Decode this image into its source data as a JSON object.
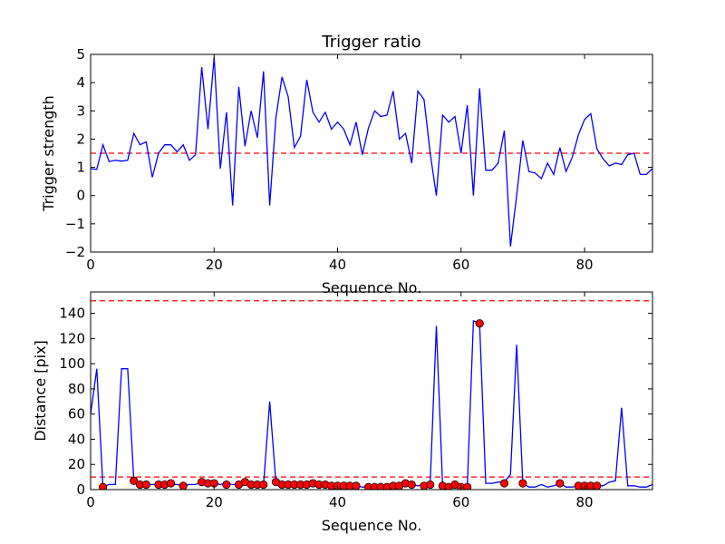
{
  "colors": {
    "line": "#0000ff",
    "marker": "#ff0000",
    "ref_line": "#ff0000",
    "background": "#ffffff"
  },
  "chart_data": [
    {
      "type": "line",
      "title": "Trigger ratio",
      "xlabel": "Sequence No.",
      "ylabel": "Trigger strength",
      "xlim": [
        0,
        91
      ],
      "ylim": [
        -2,
        5
      ],
      "xticks": [
        0,
        20,
        40,
        60,
        80
      ],
      "yticks": [
        -2,
        -1,
        0,
        1,
        2,
        3,
        4,
        5
      ],
      "grid": false,
      "reference_lines": [
        {
          "y": 1.5,
          "style": "dashed",
          "color": "#ff0000"
        }
      ],
      "series": [
        {
          "color": "#0000ff",
          "x": [
            0,
            1,
            2,
            3,
            4,
            5,
            6,
            7,
            8,
            9,
            10,
            11,
            12,
            13,
            14,
            15,
            16,
            17,
            18,
            19,
            20,
            21,
            22,
            23,
            24,
            25,
            26,
            27,
            28,
            29,
            30,
            31,
            32,
            33,
            34,
            35,
            36,
            37,
            38,
            39,
            40,
            41,
            42,
            43,
            44,
            45,
            46,
            47,
            48,
            49,
            50,
            51,
            52,
            53,
            54,
            55,
            56,
            57,
            58,
            59,
            60,
            61,
            62,
            63,
            64,
            65,
            66,
            67,
            68,
            69,
            70,
            71,
            72,
            73,
            74,
            75,
            76,
            77,
            78,
            79,
            80,
            81,
            82,
            83,
            84,
            85,
            86,
            87,
            88,
            89,
            90,
            91
          ],
          "y": [
            0.95,
            0.93,
            1.8,
            1.2,
            1.25,
            1.22,
            1.25,
            2.2,
            1.8,
            1.9,
            0.65,
            1.5,
            1.8,
            1.8,
            1.55,
            1.8,
            1.25,
            1.45,
            4.55,
            2.35,
            4.9,
            0.95,
            2.95,
            -0.35,
            3.85,
            1.75,
            3.0,
            2.05,
            4.4,
            -0.35,
            2.75,
            4.2,
            3.5,
            1.7,
            2.1,
            4.1,
            2.95,
            2.6,
            2.95,
            2.35,
            2.6,
            2.35,
            1.8,
            2.6,
            1.45,
            2.4,
            3.0,
            2.8,
            2.85,
            3.7,
            2.0,
            2.2,
            1.15,
            3.7,
            3.4,
            1.5,
            0.0,
            2.85,
            2.6,
            2.8,
            1.5,
            3.2,
            0.0,
            3.8,
            0.9,
            0.9,
            1.15,
            2.3,
            -1.8,
            0.0,
            1.95,
            0.85,
            0.8,
            0.6,
            1.15,
            0.75,
            1.7,
            0.85,
            1.35,
            2.15,
            2.7,
            2.9,
            1.65,
            1.3,
            1.05,
            1.15,
            1.1,
            1.45,
            1.5,
            0.75,
            0.75,
            0.95
          ]
        }
      ]
    },
    {
      "type": "line",
      "title": "",
      "xlabel": "Sequence No.",
      "ylabel": "Distance [pix]",
      "xlim": [
        0,
        91
      ],
      "ylim": [
        0,
        157
      ],
      "xticks": [
        0,
        20,
        40,
        60,
        80
      ],
      "yticks": [
        0,
        20,
        40,
        60,
        80,
        100,
        120,
        140
      ],
      "grid": false,
      "reference_lines": [
        {
          "y": 150,
          "style": "dashed",
          "color": "#ff0000"
        },
        {
          "y": 10,
          "style": "dashed",
          "color": "#ff0000"
        }
      ],
      "series": [
        {
          "color": "#0000ff",
          "x": [
            0,
            1,
            2,
            3,
            4,
            5,
            6,
            7,
            8,
            9,
            10,
            11,
            12,
            13,
            14,
            15,
            16,
            17,
            18,
            19,
            20,
            21,
            22,
            23,
            24,
            25,
            26,
            27,
            28,
            29,
            30,
            31,
            32,
            33,
            34,
            35,
            36,
            37,
            38,
            39,
            40,
            41,
            42,
            43,
            44,
            45,
            46,
            47,
            48,
            49,
            50,
            51,
            52,
            53,
            54,
            55,
            56,
            57,
            58,
            59,
            60,
            61,
            62,
            63,
            64,
            65,
            66,
            67,
            68,
            69,
            70,
            71,
            72,
            73,
            74,
            75,
            76,
            77,
            78,
            79,
            80,
            81,
            82,
            83,
            84,
            85,
            86,
            87,
            88,
            89,
            90,
            91
          ],
          "y": [
            60,
            96,
            2,
            4,
            4,
            96,
            96,
            7,
            4,
            4,
            4,
            4,
            4,
            4,
            4,
            3,
            4,
            4,
            6,
            5,
            5,
            4,
            5,
            4,
            4,
            6,
            4,
            4,
            4,
            70,
            6,
            4,
            4,
            4,
            4,
            4,
            5,
            4,
            4,
            3,
            3,
            3,
            3,
            3,
            2,
            2,
            2,
            2,
            2,
            3,
            4,
            5,
            4,
            3,
            4,
            5,
            130,
            3,
            2,
            4,
            2,
            2,
            134,
            132,
            5,
            5,
            6,
            6,
            12,
            115,
            5,
            2,
            2,
            4,
            2,
            3,
            5,
            2,
            2,
            3,
            3,
            3,
            3,
            3,
            6,
            7,
            65,
            3,
            3,
            2,
            2,
            4
          ]
        },
        {
          "marker": "circle",
          "color": "#ff0000",
          "x": [
            2,
            7,
            8,
            9,
            11,
            12,
            13,
            15,
            18,
            19,
            20,
            22,
            24,
            25,
            26,
            27,
            28,
            30,
            31,
            32,
            33,
            34,
            35,
            36,
            37,
            38,
            39,
            40,
            41,
            42,
            43,
            45,
            46,
            47,
            48,
            49,
            50,
            51,
            52,
            54,
            55,
            57,
            58,
            59,
            60,
            61,
            63,
            67,
            70,
            76,
            79,
            80,
            81,
            82
          ],
          "y": [
            2,
            7,
            4,
            4,
            4,
            4,
            5,
            3,
            6,
            5,
            5,
            4,
            4,
            6,
            4,
            4,
            4,
            6,
            4,
            4,
            4,
            4,
            4,
            5,
            4,
            4,
            3,
            3,
            3,
            3,
            3,
            2,
            2,
            2,
            2,
            3,
            3,
            5,
            4,
            3,
            4,
            3,
            2,
            4,
            2,
            2,
            132,
            5,
            5,
            5,
            3,
            3,
            3,
            3
          ]
        }
      ]
    }
  ]
}
